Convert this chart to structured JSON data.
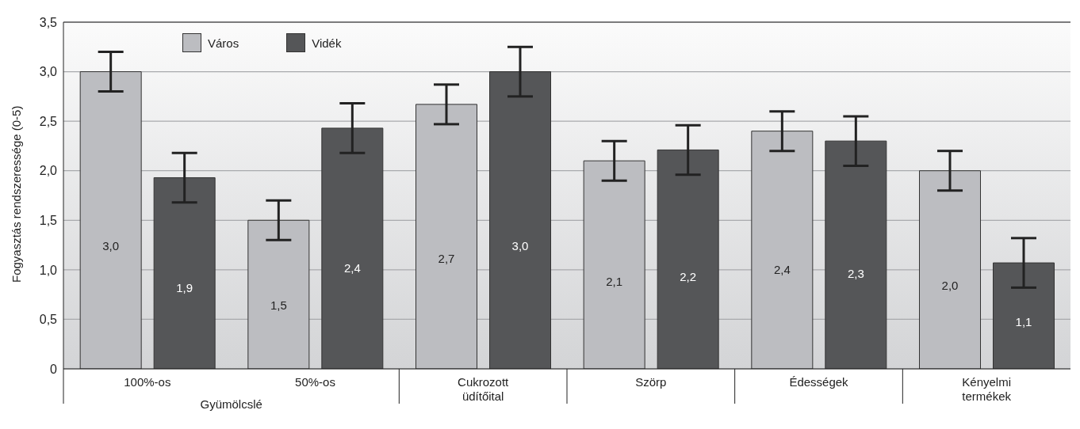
{
  "chart_data": {
    "type": "bar",
    "ylabel": "Fogyasztás rendszeressége (0-5)",
    "categories": [
      "100%-os",
      "50%-os",
      "Cukrozott üdítőital",
      "Szörp",
      "Édességek",
      "Kényelmi termékek"
    ],
    "annotations": [
      "Gyümölcslé"
    ],
    "series": [
      {
        "name": "Város",
        "color": "#bcbdc1",
        "values": [
          3.0,
          1.5,
          2.67,
          2.1,
          2.4,
          2.0
        ],
        "errors": [
          0.2,
          0.2,
          0.2,
          0.2,
          0.2,
          0.2
        ],
        "value_labels": [
          "3,0",
          "1,5",
          "2,7",
          "2,1",
          "2,4",
          "2,0"
        ]
      },
      {
        "name": "Vidék",
        "color": "#555658",
        "values": [
          1.93,
          2.43,
          3.0,
          2.21,
          2.3,
          1.07
        ],
        "errors": [
          0.25,
          0.25,
          0.25,
          0.25,
          0.25,
          0.25
        ],
        "value_labels": [
          "1,9",
          "2,4",
          "3,0",
          "2,2",
          "2,3",
          "1,1"
        ]
      }
    ],
    "ylim": [
      0,
      3.5
    ],
    "yticks": [
      0,
      {
        "value": 0.5,
        "label": "0,5"
      },
      {
        "value": 1,
        "label": "1,0"
      },
      {
        "value": 1.5,
        "label": "1,5"
      },
      {
        "value": 2,
        "label": "2,0"
      },
      {
        "value": 2.5,
        "label": "2,5"
      },
      {
        "value": 3,
        "label": "3,0"
      },
      {
        "value": 3.5,
        "label": "3,5"
      }
    ],
    "grid": "y",
    "legend": "top left"
  }
}
